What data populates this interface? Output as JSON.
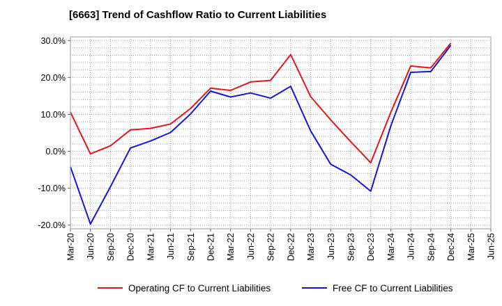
{
  "chart_data": {
    "type": "line",
    "title": "[6663]  Trend of Cashflow Ratio to Current Liabilities",
    "xlabel": "",
    "ylabel": "",
    "x": [
      "Mar-20",
      "Jun-20",
      "Sep-20",
      "Dec-20",
      "Mar-21",
      "Jun-21",
      "Sep-21",
      "Dec-21",
      "Mar-22",
      "Jun-22",
      "Sep-22",
      "Dec-22",
      "Mar-23",
      "Jun-23",
      "Sep-23",
      "Dec-23",
      "Mar-24",
      "Jun-24",
      "Sep-24",
      "Dec-24",
      "Mar-25",
      "Jun-25"
    ],
    "ylim": [
      -21,
      31
    ],
    "yticks": [
      30,
      20,
      10,
      0,
      -10,
      -20
    ],
    "ytick_labels": [
      "30.0%",
      "20.0%",
      "10.0%",
      "0.0%",
      "-10.0%",
      "-20.0%"
    ],
    "grid": true,
    "legend_position": "bottom",
    "series": [
      {
        "name": "Operating CF to Current Liabilities",
        "color": "#e8141b",
        "values": [
          {
            "x": "Mar-20",
            "y": 10.6
          },
          {
            "x": "Jun-20",
            "y": -0.7
          },
          {
            "x": "Sep-20",
            "y": 1.5
          },
          {
            "x": "Dec-20",
            "y": 5.8
          },
          {
            "x": "Mar-21",
            "y": 6.2
          },
          {
            "x": "Jun-21",
            "y": 7.4
          },
          {
            "x": "Sep-21",
            "y": 11.6
          },
          {
            "x": "Dec-21",
            "y": 17.1
          },
          {
            "x": "Mar-22",
            "y": 16.5
          },
          {
            "x": "Jun-22",
            "y": 18.8
          },
          {
            "x": "Sep-22",
            "y": 19.2
          },
          {
            "x": "Dec-22",
            "y": 26.2
          },
          {
            "x": "Mar-23",
            "y": 14.8
          },
          {
            "x": "Jun-23",
            "y": 8.5
          },
          {
            "x": "Sep-23",
            "y": 2.6
          },
          {
            "x": "Dec-23",
            "y": -3.1
          },
          {
            "x": "Mar-24",
            "y": 10.5
          },
          {
            "x": "Jun-24",
            "y": 23.1
          },
          {
            "x": "Sep-24",
            "y": 22.6
          },
          {
            "x": "Dec-24",
            "y": 29.3
          }
        ]
      },
      {
        "name": "Free CF to Current Liabilities",
        "color": "#1414e0",
        "values": [
          {
            "x": "Mar-20",
            "y": -4.2
          },
          {
            "x": "Jun-20",
            "y": -19.7
          },
          {
            "x": "Sep-20",
            "y": -9.6
          },
          {
            "x": "Dec-20",
            "y": 0.9
          },
          {
            "x": "Mar-21",
            "y": 2.8
          },
          {
            "x": "Jun-21",
            "y": 5.1
          },
          {
            "x": "Sep-21",
            "y": 10.1
          },
          {
            "x": "Dec-21",
            "y": 16.3
          },
          {
            "x": "Mar-22",
            "y": 14.7
          },
          {
            "x": "Jun-22",
            "y": 15.8
          },
          {
            "x": "Sep-22",
            "y": 14.4
          },
          {
            "x": "Dec-22",
            "y": 17.6
          },
          {
            "x": "Mar-23",
            "y": 5.5
          },
          {
            "x": "Jun-23",
            "y": -3.5
          },
          {
            "x": "Sep-23",
            "y": -6.4
          },
          {
            "x": "Dec-23",
            "y": -10.8
          },
          {
            "x": "Mar-24",
            "y": 6.8
          },
          {
            "x": "Jun-24",
            "y": 21.4
          },
          {
            "x": "Sep-24",
            "y": 21.6
          },
          {
            "x": "Dec-24",
            "y": 28.7
          }
        ]
      }
    ]
  }
}
